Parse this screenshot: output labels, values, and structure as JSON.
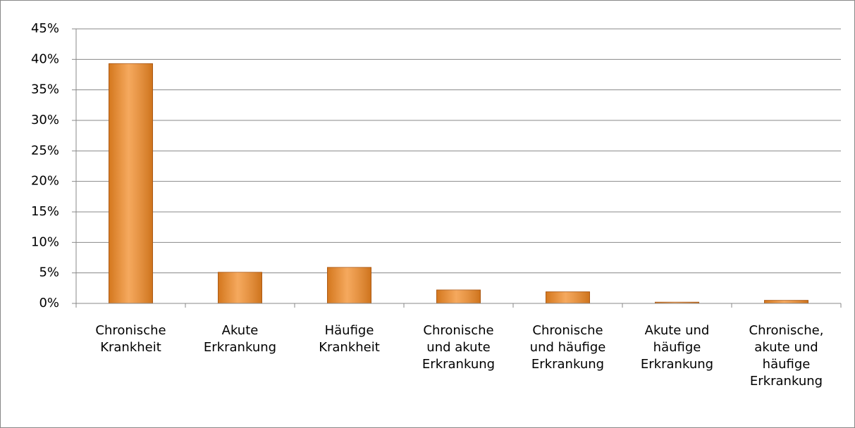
{
  "chart_data": {
    "type": "bar",
    "categories": [
      "Chronische\nKrankheit",
      "Akute\nErkrankung",
      "Häufige\nKrankheit",
      "Chronische\nund akute\nErkrankung",
      "Chronische\nund häufige\nErkrankung",
      "Akute und\nhäufige\nErkrankung",
      "Chronische,\nakute und\nhäufige\nErkrankung"
    ],
    "values": [
      39.3,
      5.1,
      5.9,
      2.2,
      1.9,
      0.2,
      0.5
    ],
    "color": "#f28c28",
    "ylim": [
      0,
      45
    ],
    "yticks": [
      {
        "value": 0,
        "label": "0%"
      },
      {
        "value": 5,
        "label": "5%"
      },
      {
        "value": 10,
        "label": "10%"
      },
      {
        "value": 15,
        "label": "15%"
      },
      {
        "value": 20,
        "label": "20%"
      },
      {
        "value": 25,
        "label": "25%"
      },
      {
        "value": 30,
        "label": "30%"
      },
      {
        "value": 35,
        "label": "35%"
      },
      {
        "value": 40,
        "label": "40%"
      },
      {
        "value": 45,
        "label": "45%"
      }
    ],
    "grid": true
  }
}
